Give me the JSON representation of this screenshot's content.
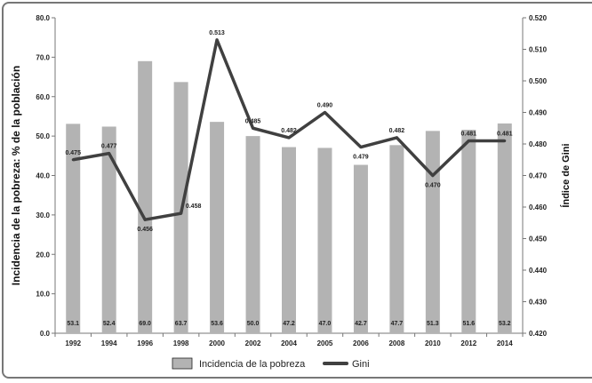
{
  "chart_data": {
    "type": "bar+line",
    "categories": [
      "1992",
      "1994",
      "1996",
      "1998",
      "2000",
      "2002",
      "2004",
      "2005",
      "2006",
      "2008",
      "2010",
      "2012",
      "2014"
    ],
    "series": [
      {
        "name": "Incidencia de la pobreza",
        "type": "bar",
        "axis": "left",
        "color": "#b3b3b3",
        "values": [
          53.1,
          52.4,
          69.0,
          63.7,
          53.6,
          50.0,
          47.2,
          47.0,
          42.7,
          47.7,
          51.3,
          51.6,
          53.2
        ],
        "labels": [
          "53.1",
          "52.4",
          "69.0",
          "63.7",
          "53.6",
          "50.0",
          "47.2",
          "47.0",
          "42.7",
          "47.7",
          "51.3",
          "51.6",
          "53.2"
        ]
      },
      {
        "name": "Gini",
        "type": "line",
        "axis": "right",
        "color": "#404040",
        "values": [
          0.475,
          0.477,
          0.456,
          0.458,
          0.513,
          0.485,
          0.482,
          0.49,
          0.479,
          0.482,
          0.47,
          0.481,
          0.481
        ],
        "labels": [
          "0.475",
          "0.477",
          "0.456",
          "0.458",
          "0.513",
          "0.485",
          "0.482",
          "0.490",
          "0.479",
          "0.482",
          "0.470",
          "0.481",
          "0.481"
        ]
      }
    ],
    "ylabel": "Incidencia de la pobreza: % de la población",
    "y2label": "Índice de Gini",
    "ylim": [
      0,
      80
    ],
    "y2lim": [
      0.42,
      0.52
    ],
    "yticks": [
      "0.0",
      "10.0",
      "20.0",
      "30.0",
      "40.0",
      "50.0",
      "60.0",
      "70.0",
      "80.0"
    ],
    "y2ticks": [
      "0.420",
      "0.430",
      "0.440",
      "0.450",
      "0.460",
      "0.470",
      "0.480",
      "0.490",
      "0.500",
      "0.510",
      "0.520"
    ],
    "grid": false,
    "legend": "bottom"
  }
}
